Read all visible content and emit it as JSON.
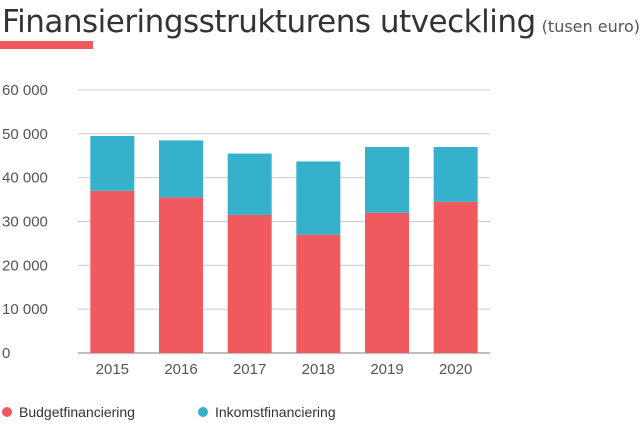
{
  "header": {
    "title": "Finansieringsstrukturens utveckling",
    "subtitle": "(tusen euro)",
    "accent_color": "#f05a5f"
  },
  "legend": {
    "placement": "bottom-left",
    "items": [
      {
        "label": "Budgetfinanciering",
        "color": "#f05a5f"
      },
      {
        "label": "Inkomstfinanciering",
        "color": "#35b1cc"
      }
    ]
  },
  "chart_data": {
    "type": "bar",
    "stacked": true,
    "categories": [
      "2015",
      "2016",
      "2017",
      "2018",
      "2019",
      "2020"
    ],
    "series": [
      {
        "name": "Budgetfinanciering",
        "color": "#f05a5f",
        "values": [
          37000,
          35500,
          31500,
          27000,
          32000,
          34500
        ]
      },
      {
        "name": "Inkomstfinanciering",
        "color": "#35b1cc",
        "values": [
          12500,
          13000,
          14000,
          16700,
          15000,
          12500
        ]
      }
    ],
    "title": "Finansieringsstrukturens utveckling",
    "subtitle": "(tusen euro)",
    "xlabel": "",
    "ylabel": "",
    "ylim": [
      0,
      60000
    ],
    "yticks": [
      0,
      10000,
      20000,
      30000,
      40000,
      50000,
      60000
    ],
    "ytick_labels": [
      "0",
      "10 000",
      "20 000",
      "30 000",
      "40 000",
      "50 000",
      "60 000"
    ],
    "grid": true,
    "legend_placement": "bottom-left"
  }
}
